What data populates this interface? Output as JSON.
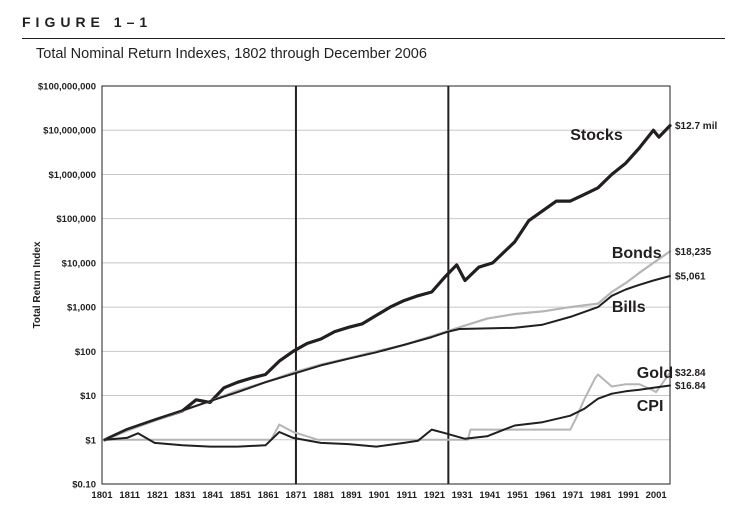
{
  "figure": {
    "label": "FIGURE 1–1",
    "title": "Total Nominal Return Indexes, 1802 through December 2006"
  },
  "colors": {
    "stocks": "#231f20",
    "bonds": "#b5b5b5",
    "bills": "#231f20",
    "gold": "#b5b5b5",
    "cpi": "#231f20",
    "axis": "#231f20",
    "grid": "#c8c8c8"
  },
  "chart_data": {
    "type": "line",
    "title": "",
    "xlabel": "",
    "ylabel": "Total Return Index",
    "x_range": [
      1801,
      2006
    ],
    "y_scale": "log",
    "y_range": [
      0.1,
      100000000
    ],
    "grid": "horizontal",
    "legend": "inline labels",
    "x_ticks": [
      1801,
      1811,
      1821,
      1831,
      1841,
      1851,
      1861,
      1871,
      1881,
      1891,
      1901,
      1911,
      1921,
      1931,
      1941,
      1951,
      1961,
      1971,
      1981,
      1991,
      2001
    ],
    "y_ticks": [
      {
        "value": 0.1,
        "label": "$0.10"
      },
      {
        "value": 1,
        "label": "$1"
      },
      {
        "value": 10,
        "label": "$10"
      },
      {
        "value": 100,
        "label": "$100"
      },
      {
        "value": 1000,
        "label": "$1,000"
      },
      {
        "value": 10000,
        "label": "$10,000"
      },
      {
        "value": 100000,
        "label": "$100,000"
      },
      {
        "value": 1000000,
        "label": "$1,000,000"
      },
      {
        "value": 10000000,
        "label": "$10,000,000"
      },
      {
        "value": 100000000,
        "label": "$100,000,000"
      }
    ],
    "vertical_markers": [
      1871,
      1926
    ],
    "series": [
      {
        "name": "Stocks",
        "end_label": "$12.7 mil",
        "x": [
          1802,
          1810,
          1820,
          1830,
          1835,
          1840,
          1845,
          1850,
          1855,
          1860,
          1865,
          1870,
          1875,
          1880,
          1885,
          1890,
          1895,
          1900,
          1905,
          1910,
          1915,
          1920,
          1925,
          1929,
          1932,
          1937,
          1942,
          1950,
          1955,
          1960,
          1965,
          1970,
          1975,
          1980,
          1985,
          1990,
          1995,
          2000,
          2002,
          2006
        ],
        "y": [
          1,
          1.7,
          2.8,
          4.5,
          8,
          7,
          15,
          20,
          25,
          30,
          60,
          100,
          150,
          190,
          280,
          350,
          420,
          650,
          1000,
          1400,
          1800,
          2200,
          5000,
          9000,
          4000,
          8000,
          10000,
          30000,
          90000,
          150000,
          250000,
          250000,
          350000,
          500000,
          1000000,
          1800000,
          4000000,
          10000000,
          7000000,
          12700000
        ]
      },
      {
        "name": "Bonds",
        "end_label": "$18,235",
        "x": [
          1802,
          1810,
          1820,
          1830,
          1840,
          1850,
          1860,
          1870,
          1880,
          1890,
          1900,
          1910,
          1920,
          1926,
          1930,
          1940,
          1950,
          1960,
          1970,
          1975,
          1980,
          1985,
          1990,
          1995,
          2000,
          2006
        ],
        "y": [
          1,
          1.6,
          2.7,
          4.5,
          7.5,
          13,
          20,
          33,
          50,
          70,
          100,
          140,
          220,
          290,
          350,
          550,
          700,
          800,
          1000,
          1100,
          1200,
          2200,
          3500,
          6000,
          10000,
          18235
        ]
      },
      {
        "name": "Bills",
        "end_label": "$5,061",
        "x": [
          1802,
          1810,
          1820,
          1830,
          1840,
          1850,
          1860,
          1870,
          1880,
          1890,
          1900,
          1910,
          1920,
          1926,
          1930,
          1940,
          1950,
          1960,
          1970,
          1980,
          1985,
          1990,
          1995,
          2000,
          2006
        ],
        "y": [
          1,
          1.7,
          2.8,
          4.6,
          7.5,
          12,
          20,
          31,
          48,
          68,
          95,
          140,
          210,
          280,
          320,
          330,
          340,
          400,
          600,
          1000,
          1800,
          2500,
          3200,
          4000,
          5061
        ]
      },
      {
        "name": "Gold",
        "end_label": "$32.84",
        "x": [
          1802,
          1830,
          1860,
          1862,
          1865,
          1870,
          1875,
          1879,
          1900,
          1930,
          1933,
          1934,
          1960,
          1970,
          1972,
          1975,
          1979,
          1980,
          1985,
          1990,
          1995,
          2000,
          2001,
          2006
        ],
        "y": [
          1,
          1,
          1,
          1,
          2.2,
          1.5,
          1.2,
          1,
          1,
          1,
          1,
          1.7,
          1.7,
          1.7,
          3,
          8,
          25,
          30,
          16,
          18,
          18,
          13,
          12,
          32.84
        ]
      },
      {
        "name": "CPI",
        "end_label": "$16.84",
        "x": [
          1802,
          1810,
          1814,
          1820,
          1830,
          1840,
          1850,
          1860,
          1865,
          1870,
          1880,
          1890,
          1900,
          1910,
          1915,
          1920,
          1925,
          1932,
          1940,
          1945,
          1950,
          1960,
          1970,
          1975,
          1980,
          1985,
          1990,
          1995,
          2000,
          2006
        ],
        "y": [
          1,
          1.1,
          1.4,
          0.85,
          0.75,
          0.7,
          0.7,
          0.75,
          1.5,
          1.1,
          0.85,
          0.8,
          0.7,
          0.85,
          0.95,
          1.7,
          1.4,
          1.05,
          1.2,
          1.6,
          2.1,
          2.5,
          3.5,
          5,
          8.5,
          11,
          12.5,
          13.5,
          15,
          16.84
        ]
      }
    ]
  }
}
